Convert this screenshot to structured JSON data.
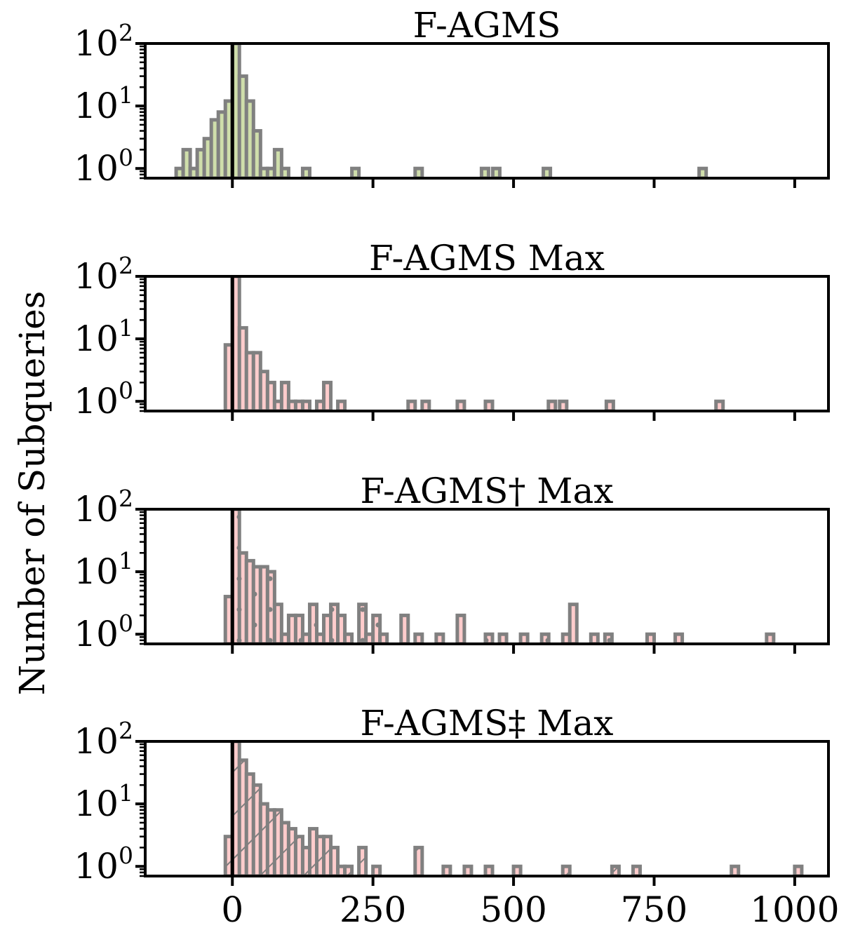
{
  "ylabel": "Number of Subqueries",
  "colors": {
    "green": "#cfdeab",
    "pink": "#ffcccc",
    "edge": "#808080",
    "zero_line": "#000000"
  },
  "shared_axes": {
    "xlim": [
      -155,
      1060
    ],
    "ylim": [
      0.7,
      100
    ],
    "yscale": "log",
    "x_ticks": [
      0,
      250,
      500,
      750,
      1000
    ],
    "x_tick_labels": [
      "0",
      "250",
      "500",
      "750",
      "1000"
    ],
    "y_ticks": [
      {
        "base": "10",
        "exp": "2",
        "value": 100
      },
      {
        "base": "10",
        "exp": "1",
        "value": 10
      },
      {
        "base": "10",
        "exp": "0",
        "value": 1
      }
    ]
  },
  "chart_data": [
    {
      "type": "histogram",
      "title": "F-AGMS",
      "fill": "#cfdeab",
      "hatch": "none",
      "bin_width": 12.5,
      "bins": [
        [
          -100,
          1
        ],
        [
          -87.5,
          2
        ],
        [
          -75,
          1
        ],
        [
          -62.5,
          2
        ],
        [
          -50,
          3
        ],
        [
          -37.5,
          6
        ],
        [
          -25,
          8
        ],
        [
          -12.5,
          12
        ],
        [
          0,
          100
        ],
        [
          12.5,
          30
        ],
        [
          25,
          12
        ],
        [
          37.5,
          4
        ],
        [
          50,
          1
        ],
        [
          62.5,
          1
        ],
        [
          75,
          2
        ],
        [
          87.5,
          1
        ],
        [
          125,
          1
        ],
        [
          212.5,
          1
        ],
        [
          325,
          1
        ],
        [
          443,
          1
        ],
        [
          463,
          1
        ],
        [
          553,
          1
        ],
        [
          830,
          1
        ]
      ]
    },
    {
      "type": "histogram",
      "title": "F-AGMS Max",
      "fill": "#ffcccc",
      "hatch": "none",
      "bin_width": 12.5,
      "bins": [
        [
          -12.5,
          8
        ],
        [
          0,
          100
        ],
        [
          12.5,
          15
        ],
        [
          25,
          6
        ],
        [
          37.5,
          6
        ],
        [
          50,
          3
        ],
        [
          62.5,
          2
        ],
        [
          75,
          1
        ],
        [
          87.5,
          2
        ],
        [
          100,
          1
        ],
        [
          112.5,
          1
        ],
        [
          125,
          1
        ],
        [
          150,
          1
        ],
        [
          162.5,
          2
        ],
        [
          187.5,
          1
        ],
        [
          312.5,
          1
        ],
        [
          337.5,
          1
        ],
        [
          400,
          1
        ],
        [
          450,
          1
        ],
        [
          562,
          1
        ],
        [
          582,
          1
        ],
        [
          665,
          1
        ],
        [
          860,
          1
        ]
      ]
    },
    {
      "type": "histogram",
      "title": "F-AGMS† Max",
      "fill": "#ffcccc",
      "hatch": "dots",
      "bin_width": 12.5,
      "bins": [
        [
          -12.5,
          4
        ],
        [
          0,
          100
        ],
        [
          12.5,
          20
        ],
        [
          25,
          15
        ],
        [
          37.5,
          12
        ],
        [
          50,
          12
        ],
        [
          62.5,
          10
        ],
        [
          75,
          3
        ],
        [
          87.5,
          1
        ],
        [
          100,
          2
        ],
        [
          112.5,
          2
        ],
        [
          125,
          1
        ],
        [
          137.5,
          3
        ],
        [
          150,
          1
        ],
        [
          162.5,
          2
        ],
        [
          175,
          3
        ],
        [
          187.5,
          2
        ],
        [
          200,
          1
        ],
        [
          225,
          3
        ],
        [
          237.5,
          1
        ],
        [
          250,
          2
        ],
        [
          262.5,
          1
        ],
        [
          300,
          2
        ],
        [
          325,
          1
        ],
        [
          362.5,
          1
        ],
        [
          400,
          2
        ],
        [
          450,
          1
        ],
        [
          475,
          1
        ],
        [
          512.5,
          1
        ],
        [
          550,
          1
        ],
        [
          587.5,
          1
        ],
        [
          600,
          3
        ],
        [
          637.5,
          1
        ],
        [
          662.5,
          1
        ],
        [
          737.5,
          1
        ],
        [
          787.5,
          1
        ],
        [
          950,
          1
        ]
      ]
    },
    {
      "type": "histogram",
      "title": "F-AGMS‡ Max",
      "fill": "#ffcccc",
      "hatch": "diagonal",
      "bin_width": 12.5,
      "bins": [
        [
          -12.5,
          3
        ],
        [
          0,
          100
        ],
        [
          12.5,
          50
        ],
        [
          25,
          30
        ],
        [
          37.5,
          20
        ],
        [
          50,
          10
        ],
        [
          62.5,
          8
        ],
        [
          75,
          8
        ],
        [
          87.5,
          5
        ],
        [
          100,
          4
        ],
        [
          112.5,
          3
        ],
        [
          125,
          2
        ],
        [
          137.5,
          4
        ],
        [
          150,
          3
        ],
        [
          162.5,
          3
        ],
        [
          175,
          2
        ],
        [
          187.5,
          1
        ],
        [
          200,
          1
        ],
        [
          225,
          2
        ],
        [
          250,
          1
        ],
        [
          325,
          2
        ],
        [
          375,
          1
        ],
        [
          412.5,
          1
        ],
        [
          450,
          1
        ],
        [
          500,
          1
        ],
        [
          587.5,
          1
        ],
        [
          675,
          1
        ],
        [
          712.5,
          1
        ],
        [
          887.5,
          1
        ],
        [
          1000,
          1
        ]
      ]
    }
  ]
}
